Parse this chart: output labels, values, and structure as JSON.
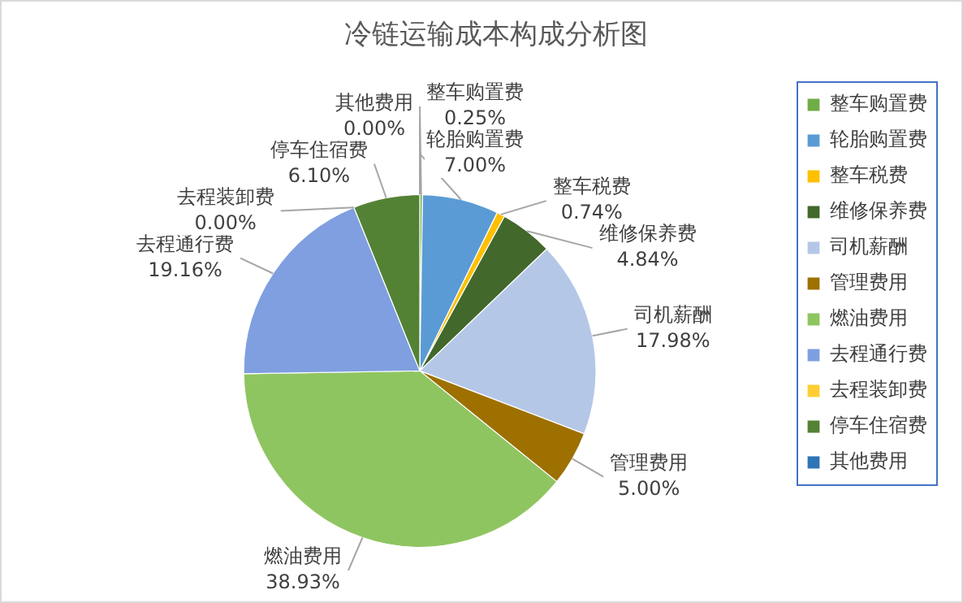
{
  "chart_data": {
    "type": "pie",
    "title": "冷链运输成本构成分析图",
    "categories": [
      "整车购置费",
      "轮胎购置费",
      "整车税费",
      "维修保养费",
      "司机薪酬",
      "管理费用",
      "燃油费用",
      "去程通行费",
      "去程装卸费",
      "停车住宿费",
      "其他费用"
    ],
    "values": [
      0.25,
      7.0,
      0.74,
      4.84,
      17.98,
      5.0,
      38.93,
      19.16,
      0.0,
      6.1,
      0.0
    ],
    "value_labels": [
      "0.25%",
      "7.00%",
      "0.74%",
      "4.84%",
      "17.98%",
      "5.00%",
      "38.93%",
      "19.16%",
      "0.00%",
      "6.10%",
      "0.00%"
    ],
    "colors": [
      "#70ad47",
      "#5b9bd5",
      "#ffc000",
      "#43682b",
      "#b4c7e7",
      "#9e7000",
      "#8fc561",
      "#7f9fe0",
      "#ffcd33",
      "#548235",
      "#2e75b6"
    ],
    "legend": "right"
  }
}
